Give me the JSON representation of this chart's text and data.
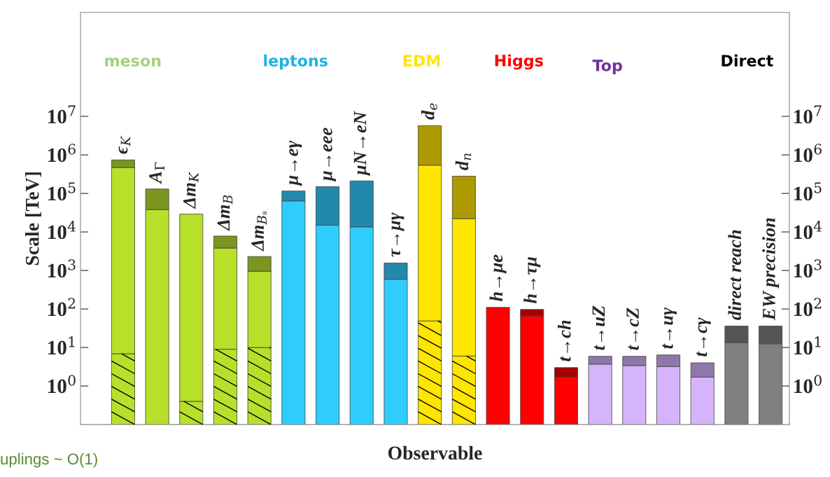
{
  "chart_data": {
    "type": "bar",
    "stacked": true,
    "xlabel": "Observable",
    "ylabel": "Scale [TeV]",
    "log": "y",
    "legend": false,
    "grid": false,
    "categories": [
      "ϵ$_{K}$",
      "A$_{Γ}$",
      "Δm$_{K}$",
      "Δm$_{B}$",
      "Δm$_{Bₛ}$",
      "μ→eγ",
      "μ→eee",
      "μN→eN",
      "τ→μγ",
      "d$_{e}$",
      "d$_{n}$",
      "h→μe",
      "h→τμ",
      "t→ch",
      "t→uZ",
      "t→cZ",
      "t→uγ",
      "t→cγ",
      "direct reach",
      "EW precision"
    ],
    "series": [
      {
        "colors": [
          "#b8e02a",
          "#b8e02a",
          "#b8e02a",
          "#b8e02a",
          "#b8e02a",
          "#2ecdfc",
          "#2ecdfc",
          "#2ecdfc",
          "#2ecdfc",
          "#ffe600",
          "#ffe600",
          "#ff0000",
          "#ff0000",
          "#ff0000",
          "#d6b4fb",
          "#d6b4fb",
          "#d6b4fb",
          "#d6b4fb",
          "#808080",
          "#808080"
        ],
        "values": [
          6.9,
          null,
          0.4,
          9,
          10,
          null,
          null,
          null,
          null,
          49,
          6,
          null,
          null,
          null,
          null,
          null,
          null,
          null,
          null,
          null
        ]
      },
      {
        "colors": [
          "#b8e02a",
          "#b8e02a",
          "#b8e02a",
          "#b8e02a",
          "#b8e02a",
          "#2ecdfc",
          "#2ecdfc",
          "#2ecdfc",
          "#2ecdfc",
          "#ffe600",
          "#ffe600",
          "#ff0000",
          "#ff0000",
          "#ff0000",
          "#d6b4fb",
          "#d6b4fb",
          "#d6b4fb",
          "#d6b4fb",
          "#808080",
          "#808080"
        ],
        "values": [
          470000,
          38000,
          29000,
          3800,
          940,
          64000,
          15000,
          13500,
          590,
          540000,
          22000,
          110,
          66,
          1.7,
          3.7,
          3.4,
          3.2,
          1.7,
          13.5,
          12.5
        ]
      },
      {
        "colors": [
          "#7a961f",
          "#7a961f",
          "#7a961f",
          "#7a961f",
          "#7a961f",
          "#2289ad",
          "#2289ad",
          "#2289ad",
          "#2289ad",
          "#ac9a00",
          "#ac9a00",
          "#a50000",
          "#a50000",
          "#a50000",
          "#8e78ab",
          "#8e78ab",
          "#8e78ab",
          "#8e78ab",
          "#555555",
          "#555555"
        ],
        "values": [
          270000,
          92000,
          null,
          4000,
          1350,
          51000,
          135000,
          197000,
          970,
          5200000,
          258000,
          null,
          31,
          1.3,
          2.2,
          2.5,
          3.2,
          2.3,
          22.5,
          23.5
        ]
      }
    ],
    "ylim": [
      0.1,
      5000000000
    ],
    "yticks": [
      {
        "value": 1,
        "label": "10$^{0}$"
      },
      {
        "value": 10,
        "label": "10$^{1}$"
      },
      {
        "value": 100,
        "label": "10$^{2}$"
      },
      {
        "value": 1000,
        "label": "10$^{3}$"
      },
      {
        "value": 10000,
        "label": "10$^{4}$"
      },
      {
        "value": 100000,
        "label": "10$^{5}$"
      },
      {
        "value": 1000000,
        "label": "10$^{6}$"
      },
      {
        "value": 10000000,
        "label": "10$^{7}$"
      }
    ],
    "annotations": [
      "meson",
      "leptons",
      "EDM",
      "Higgs",
      "Top",
      "Direct",
      "uplings ~ O(1)"
    ]
  }
}
